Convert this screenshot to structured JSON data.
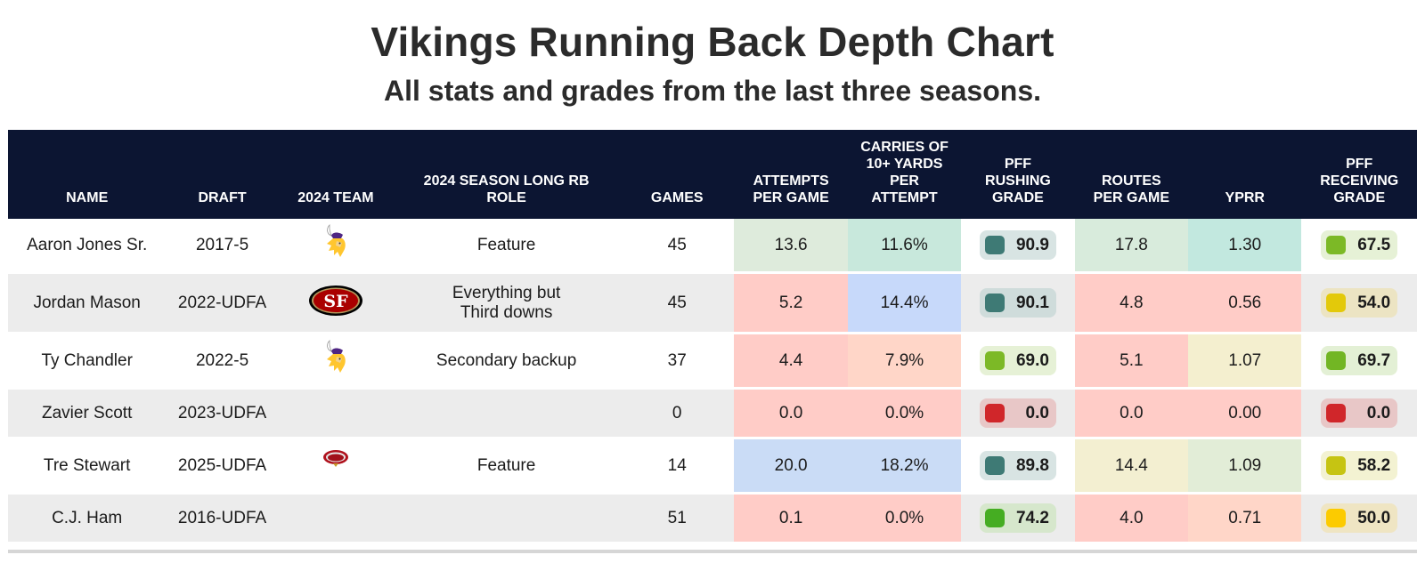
{
  "title": "Vikings Running Back Depth Chart",
  "subtitle": "All stats and grades from the last three seasons.",
  "columns": [
    {
      "key": "name",
      "label": "NAME"
    },
    {
      "key": "draft",
      "label": "DRAFT"
    },
    {
      "key": "team",
      "label": "2024 TEAM"
    },
    {
      "key": "role",
      "label": "2024 SEASON LONG RB ROLE"
    },
    {
      "key": "games",
      "label": "GAMES"
    },
    {
      "key": "attempts",
      "label": "ATTEMPTS PER GAME"
    },
    {
      "key": "carries10",
      "label": "CARRIES OF 10+ YARDS PER ATTEMPT"
    },
    {
      "key": "rush_grade",
      "label": "PFF RUSHING GRADE"
    },
    {
      "key": "routes",
      "label": "ROUTES PER GAME"
    },
    {
      "key": "yprr",
      "label": "YPRR"
    },
    {
      "key": "recv_grade",
      "label": "PFF RECEIVING GRADE"
    }
  ],
  "rows": [
    {
      "name": "Aaron Jones Sr.",
      "draft": "2017-5",
      "team_logo": "vikings-logo-icon",
      "role": "Feature",
      "games": "45",
      "attempts": {
        "value": "13.6",
        "color": "#deebdc"
      },
      "carries10": {
        "value": "11.6%",
        "color": "#c8e8dc"
      },
      "rush_grade": {
        "value": "90.9",
        "swatch": "#3e7a75",
        "bg": "#d8e4e3"
      },
      "routes": {
        "value": "17.8",
        "color": "#d8ebdc"
      },
      "yprr": {
        "value": "1.30",
        "color": "#c2e8df"
      },
      "recv_grade": {
        "value": "67.5",
        "swatch": "#7cb926",
        "bg": "#e6f1d6"
      }
    },
    {
      "name": "Jordan Mason",
      "draft": "2022-UDFA",
      "team_logo": "49ers-logo-icon",
      "role": "Everything but Third downs",
      "games": "45",
      "attempts": {
        "value": "5.2",
        "color": "#ffccc7"
      },
      "carries10": {
        "value": "14.4%",
        "color": "#c7d9fa"
      },
      "rush_grade": {
        "value": "90.1",
        "swatch": "#3e7a75",
        "bg": "#cfdcdb"
      },
      "routes": {
        "value": "4.8",
        "color": "#ffccc7"
      },
      "yprr": {
        "value": "0.56",
        "color": "#ffccc7"
      },
      "recv_grade": {
        "value": "54.0",
        "swatch": "#e3c90a",
        "bg": "#ece4c3"
      }
    },
    {
      "name": "Ty Chandler",
      "draft": "2022-5",
      "team_logo": "vikings-logo-icon",
      "role": "Secondary backup",
      "games": "37",
      "attempts": {
        "value": "4.4",
        "color": "#ffccc7"
      },
      "carries10": {
        "value": "7.9%",
        "color": "#ffd6c8"
      },
      "rush_grade": {
        "value": "69.0",
        "swatch": "#7cb926",
        "bg": "#e6f1d6"
      },
      "routes": {
        "value": "5.1",
        "color": "#ffccc7"
      },
      "yprr": {
        "value": "1.07",
        "color": "#f4efcf"
      },
      "recv_grade": {
        "value": "69.7",
        "swatch": "#72b624",
        "bg": "#e3f0d5"
      }
    },
    {
      "name": "Zavier Scott",
      "draft": "2023-UDFA",
      "team_logo": "",
      "role": "",
      "games": "0",
      "attempts": {
        "value": "0.0",
        "color": "#ffccc7"
      },
      "carries10": {
        "value": "0.0%",
        "color": "#ffccc7"
      },
      "rush_grade": {
        "value": "0.0",
        "swatch": "#d0262a",
        "bg": "#e8c7c7"
      },
      "routes": {
        "value": "0.0",
        "color": "#ffccc7"
      },
      "yprr": {
        "value": "0.00",
        "color": "#ffccc7"
      },
      "recv_grade": {
        "value": "0.0",
        "swatch": "#d0262a",
        "bg": "#e8c7c7"
      }
    },
    {
      "name": "Tre Stewart",
      "draft": "2025-UDFA",
      "team_logo": "college-logo-icon",
      "role": "Feature",
      "games": "14",
      "attempts": {
        "value": "20.0",
        "color": "#cadcf6"
      },
      "carries10": {
        "value": "18.2%",
        "color": "#cadcf6"
      },
      "rush_grade": {
        "value": "89.8",
        "swatch": "#3e7a75",
        "bg": "#d8e4e3"
      },
      "routes": {
        "value": "14.4",
        "color": "#f3efd1"
      },
      "yprr": {
        "value": "1.09",
        "color": "#e2edd7"
      },
      "recv_grade": {
        "value": "58.2",
        "swatch": "#c6c412",
        "bg": "#f3f2d2"
      }
    },
    {
      "name": "C.J. Ham",
      "draft": "2016-UDFA",
      "team_logo": "",
      "role": "",
      "games": "51",
      "attempts": {
        "value": "0.1",
        "color": "#ffccc7"
      },
      "carries10": {
        "value": "0.0%",
        "color": "#ffccc7"
      },
      "rush_grade": {
        "value": "74.2",
        "swatch": "#45ad22",
        "bg": "#d6e7cc"
      },
      "routes": {
        "value": "4.0",
        "color": "#ffccc7"
      },
      "yprr": {
        "value": "0.71",
        "color": "#ffd6c8"
      },
      "recv_grade": {
        "value": "50.0",
        "swatch": "#fccb00",
        "bg": "#efe5c3"
      }
    }
  ],
  "colors": {
    "header_bg": "#0c1532",
    "row_gray": "#ececec",
    "row_white": "#ffffff"
  }
}
